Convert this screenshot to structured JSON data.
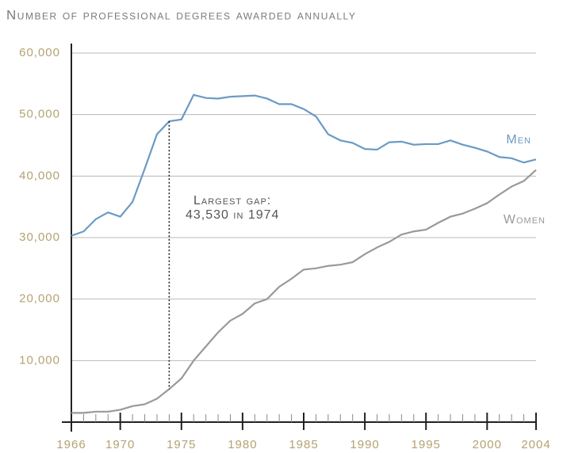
{
  "chart_data": {
    "type": "line",
    "title": "Number of professional degrees awarded annually",
    "x": [
      1966,
      1967,
      1968,
      1969,
      1970,
      1971,
      1972,
      1973,
      1974,
      1975,
      1976,
      1977,
      1978,
      1979,
      1980,
      1981,
      1982,
      1983,
      1984,
      1985,
      1986,
      1987,
      1988,
      1989,
      1990,
      1991,
      1992,
      1993,
      1994,
      1995,
      1996,
      1997,
      1998,
      1999,
      2000,
      2001,
      2002,
      2003,
      2004
    ],
    "series": [
      {
        "name": "Men",
        "color": "#6b9ac4",
        "values": [
          30300,
          31000,
          33000,
          34100,
          33400,
          35800,
          41200,
          46800,
          48900,
          49200,
          53200,
          52700,
          52600,
          52900,
          53000,
          53100,
          52600,
          51700,
          51700,
          50900,
          49700,
          46800,
          45800,
          45400,
          44400,
          44300,
          45500,
          45600,
          45100,
          45200,
          45200,
          45800,
          45100,
          44600,
          44000,
          43100,
          42900,
          42200,
          42700
        ]
      },
      {
        "name": "Women",
        "color": "#999999",
        "values": [
          1500,
          1500,
          1700,
          1700,
          2000,
          2600,
          2900,
          3800,
          5370,
          7100,
          10000,
          12300,
          14600,
          16500,
          17600,
          19300,
          20000,
          22000,
          23300,
          24800,
          25000,
          25400,
          25600,
          26000,
          27300,
          28400,
          29300,
          30500,
          31000,
          31300,
          32400,
          33400,
          33900,
          34700,
          35600,
          37000,
          38300,
          39200,
          41000
        ]
      }
    ],
    "annotation": [
      "Largest gap:",
      "43,530 in 1974"
    ],
    "xlim": [
      1966,
      2004
    ],
    "xticks": [
      1966,
      1970,
      1975,
      1980,
      1985,
      1990,
      1995,
      2000,
      2004
    ],
    "ylim": [
      0,
      60000
    ],
    "yticks": [
      {
        "value": 10000,
        "label": "10,000"
      },
      {
        "value": 20000,
        "label": "20,000"
      },
      {
        "value": 30000,
        "label": "30,000"
      },
      {
        "value": 40000,
        "label": "40,000"
      },
      {
        "value": 50000,
        "label": "50,000"
      },
      {
        "value": 60000,
        "label": "60,000"
      }
    ],
    "grid": true
  }
}
